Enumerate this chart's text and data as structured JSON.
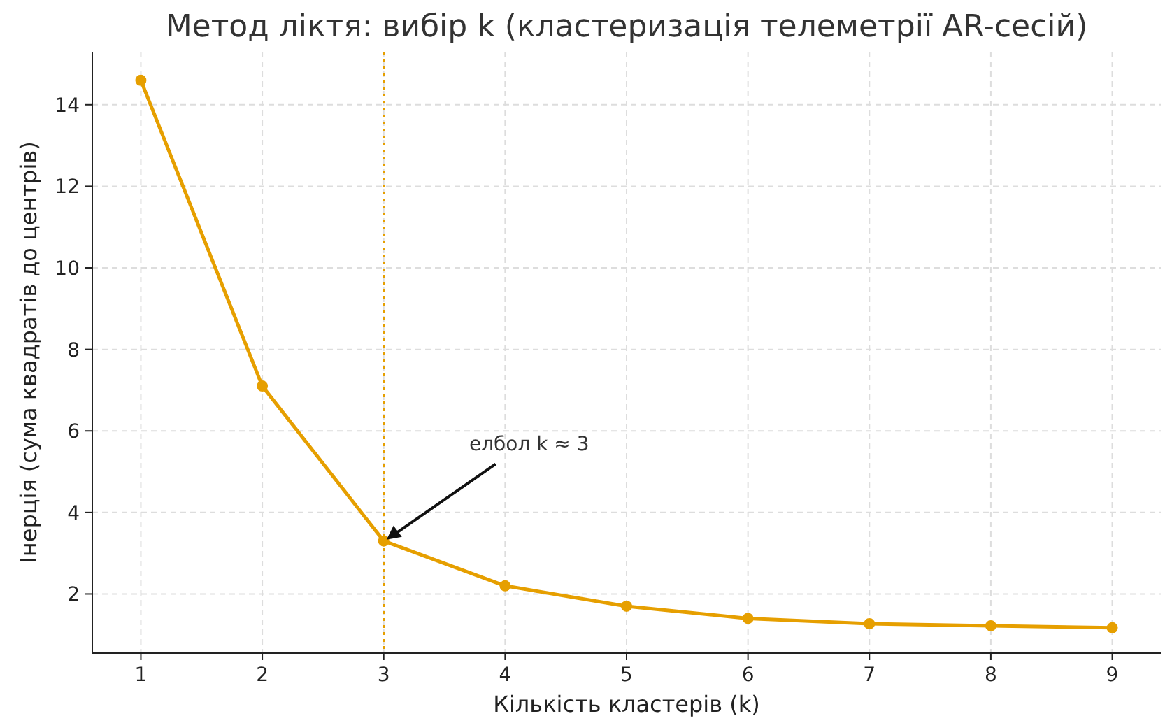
{
  "chart_data": {
    "type": "line",
    "title": "Метод ліктя: вибір k (кластеризація телеметрії AR-сесій)",
    "xlabel": "Кількість кластерів (k)",
    "ylabel": "Інерція (сума квадратів до центрів)",
    "x": [
      1,
      2,
      3,
      4,
      5,
      6,
      7,
      8,
      9
    ],
    "series": [
      {
        "color": "#e69f00",
        "values": [
          14.6,
          7.1,
          3.3,
          2.2,
          1.7,
          1.4,
          1.27,
          1.22,
          1.17
        ]
      }
    ],
    "xlim": [
      0.6,
      9.4
    ],
    "xticks": [
      1,
      2,
      3,
      4,
      5,
      6,
      7,
      8,
      9
    ],
    "ylim": [
      0.55,
      15.3
    ],
    "yticks": [
      2,
      4,
      6,
      8,
      10,
      12,
      14
    ],
    "grid": true,
    "marker": "circle",
    "line_style": "solid",
    "ref_lines": [
      {
        "axis": "x",
        "value": 3,
        "color": "#e69f00",
        "line_style": "dotted"
      }
    ],
    "annotations": [
      "елбол k ≈ 3"
    ]
  }
}
